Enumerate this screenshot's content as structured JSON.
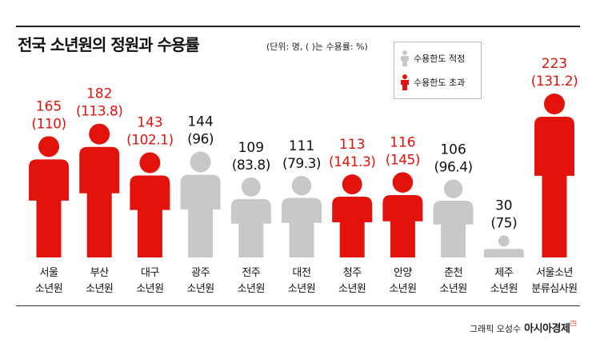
{
  "header": {
    "title": "전국 소년원의 정원과 수용률",
    "unit_note": "(단위: 명, ( )는 수용률: %)"
  },
  "legend": {
    "items": [
      {
        "label": "수용한도 적정",
        "color": "#c8c8c8",
        "icon": "person-icon"
      },
      {
        "label": "수용한도 초과",
        "color": "#e3120b",
        "icon": "person-icon"
      }
    ]
  },
  "colors": {
    "over": "#e3120b",
    "ok": "#c8c8c8",
    "over_text": "#e3120b",
    "ok_text": "#111111"
  },
  "chart_data": {
    "type": "bar",
    "title": "전국 소년원의 정원과 수용률",
    "categories": [
      "서울 소년원",
      "부산 소년원",
      "대구 소년원",
      "광주 소년원",
      "전주 소년원",
      "대전 소년원",
      "청주 소년원",
      "안양 소년원",
      "춘천 소년원",
      "제주 소년원",
      "서울소년 분류심사원"
    ],
    "category_lines": [
      [
        "서울",
        "소년원"
      ],
      [
        "부산",
        "소년원"
      ],
      [
        "대구",
        "소년원"
      ],
      [
        "광주",
        "소년원"
      ],
      [
        "전주",
        "소년원"
      ],
      [
        "대전",
        "소년원"
      ],
      [
        "청주",
        "소년원"
      ],
      [
        "안양",
        "소년원"
      ],
      [
        "춘천",
        "소년원"
      ],
      [
        "제주",
        "소년원"
      ],
      [
        "서울소년",
        "분류심사원"
      ]
    ],
    "series": [
      {
        "name": "정원",
        "values": [
          165,
          182,
          143,
          144,
          109,
          111,
          113,
          116,
          106,
          30,
          223
        ]
      },
      {
        "name": "수용률",
        "values": [
          110,
          113.8,
          102.1,
          96,
          83.8,
          79.3,
          141.3,
          145,
          96.4,
          75,
          131.2
        ]
      }
    ],
    "value_labels": [
      "165",
      "182",
      "143",
      "144",
      "109",
      "111",
      "113",
      "116",
      "106",
      "30",
      "223"
    ],
    "rate_labels": [
      "(110)",
      "(113.8)",
      "(102.1)",
      "(96)",
      "(83.8)",
      "(79.3)",
      "(141.3)",
      "(145)",
      "(96.4)",
      "(75)",
      "(131.2)"
    ],
    "status": [
      "over",
      "over",
      "over",
      "ok",
      "ok",
      "ok",
      "over",
      "over",
      "ok",
      "ok",
      "over"
    ]
  },
  "footer": {
    "credit": "그래픽 오성수",
    "brand": "아시아경제"
  }
}
